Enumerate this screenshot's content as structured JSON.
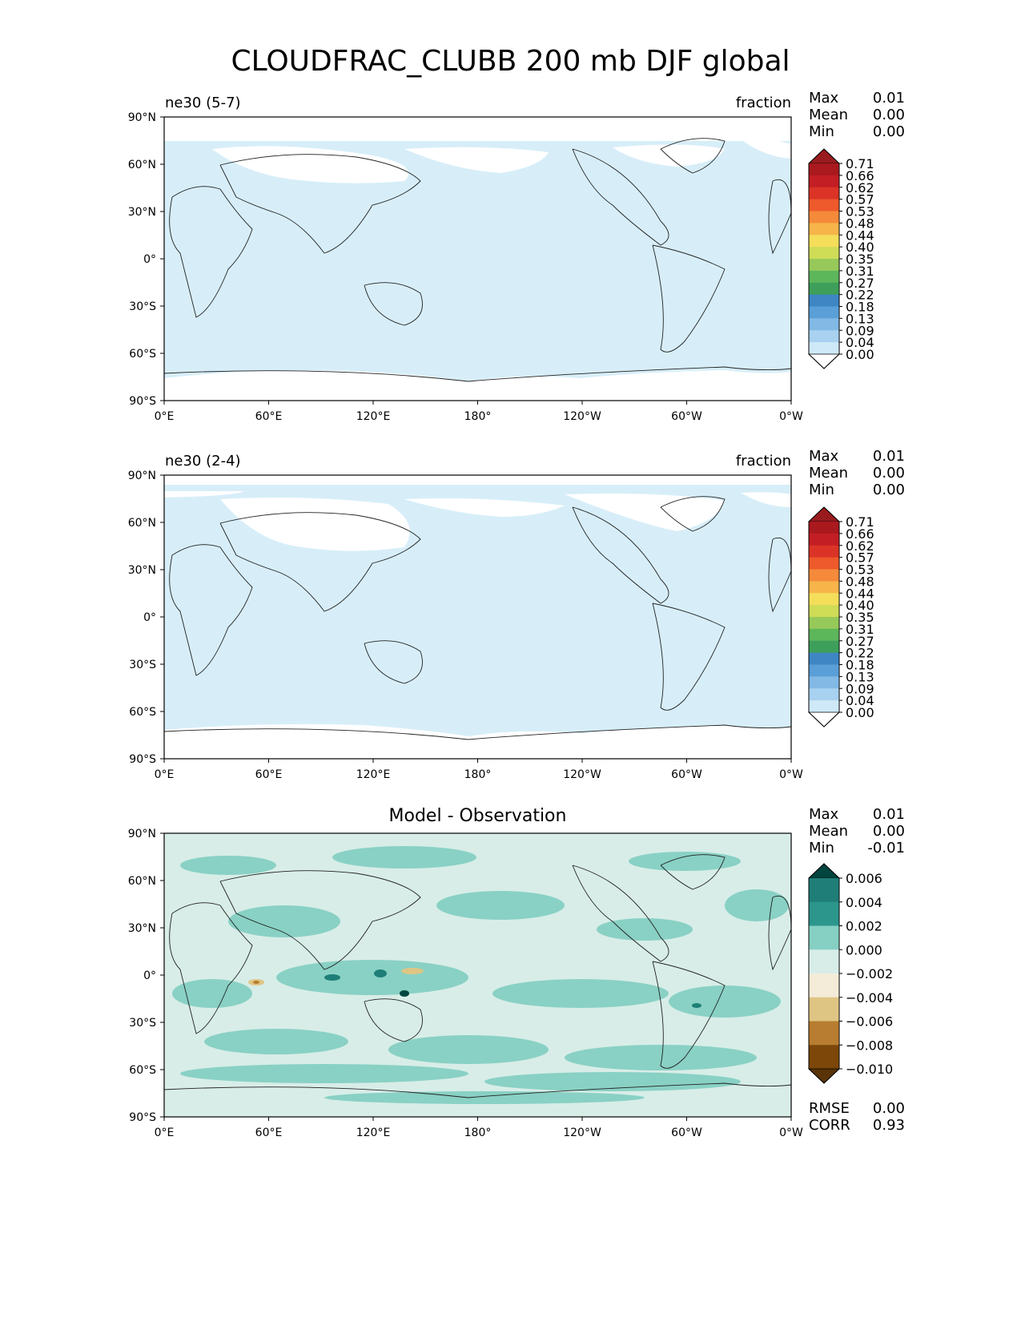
{
  "title": "CLOUDFRAC_CLUBB 200 mb DJF global",
  "x_ticks": [
    "0°E",
    "60°E",
    "120°E",
    "180°",
    "120°W",
    "60°W",
    "0°W"
  ],
  "y_ticks": [
    "90°N",
    "60°N",
    "30°N",
    "0°",
    "30°S",
    "60°S",
    "90°S"
  ],
  "panels": [
    {
      "label": "ne30 (5-7)",
      "units": "fraction",
      "stats": {
        "max_label": "Max",
        "max": "0.01",
        "mean_label": "Mean",
        "mean": "0.00",
        "min_label": "Min",
        "min": "0.00"
      },
      "colorbar": {
        "levels": [
          "0.71",
          "0.66",
          "0.62",
          "0.57",
          "0.53",
          "0.48",
          "0.44",
          "0.40",
          "0.35",
          "0.31",
          "0.27",
          "0.22",
          "0.18",
          "0.13",
          "0.09",
          "0.04",
          "0.00"
        ],
        "colors": [
          "#991b1e",
          "#a9191e",
          "#c31e24",
          "#dc3327",
          "#ee5a2b",
          "#f58a3b",
          "#f7b549",
          "#f4de5a",
          "#cfdc56",
          "#97c95a",
          "#5cb65a",
          "#3e9f5a",
          "#3e86c4",
          "#5b9fd8",
          "#82b9e5",
          "#a8d2f0",
          "#cfe9f8",
          "#ffffff"
        ]
      },
      "field_color": "#d7eef9"
    },
    {
      "label": "ne30 (2-4)",
      "units": "fraction",
      "stats": {
        "max_label": "Max",
        "max": "0.01",
        "mean_label": "Mean",
        "mean": "0.00",
        "min_label": "Min",
        "min": "0.00"
      },
      "colorbar": {
        "levels": [
          "0.71",
          "0.66",
          "0.62",
          "0.57",
          "0.53",
          "0.48",
          "0.44",
          "0.40",
          "0.35",
          "0.31",
          "0.27",
          "0.22",
          "0.18",
          "0.13",
          "0.09",
          "0.04",
          "0.00"
        ],
        "colors": [
          "#991b1e",
          "#a9191e",
          "#c31e24",
          "#dc3327",
          "#ee5a2b",
          "#f58a3b",
          "#f7b549",
          "#f4de5a",
          "#cfdc56",
          "#97c95a",
          "#5cb65a",
          "#3e9f5a",
          "#3e86c4",
          "#5b9fd8",
          "#82b9e5",
          "#a8d2f0",
          "#cfe9f8",
          "#ffffff"
        ]
      },
      "field_color": "#d7eef9"
    },
    {
      "label": "Model - Observation",
      "units": "",
      "stats": {
        "max_label": "Max",
        "max": "0.01",
        "mean_label": "Mean",
        "mean": "0.00",
        "min_label": "Min",
        "min": "-0.01"
      },
      "extra_stats": {
        "rmse_label": "RMSE",
        "rmse": "0.00",
        "corr_label": "CORR",
        "corr": "0.93"
      },
      "colorbar": {
        "levels": [
          "0.006",
          "0.004",
          "0.002",
          "0.000",
          "−0.002",
          "−0.004",
          "−0.006",
          "−0.008",
          "−0.010"
        ],
        "colors": [
          "#01453e",
          "#1f7f78",
          "#2c968d",
          "#85d0c3",
          "#d8ede8",
          "#f4ecd8",
          "#dfc584",
          "#b87d30",
          "#7c4709",
          "#5a3306"
        ]
      },
      "field_color": "#d8ede8"
    }
  ]
}
